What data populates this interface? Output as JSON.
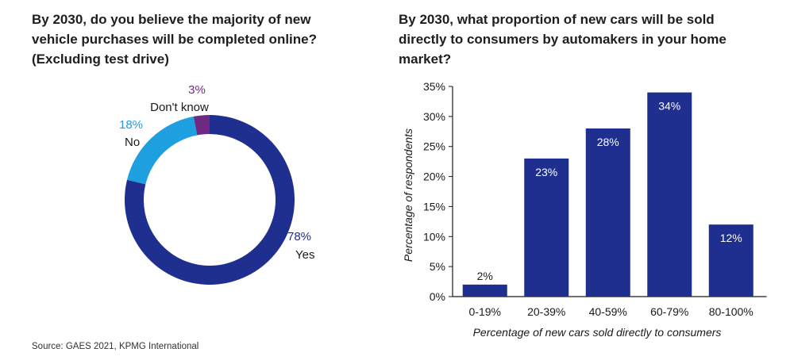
{
  "left_chart": {
    "title_lines": [
      "By 2030, do you believe the majority of new",
      "vehicle purchases will be completed online?",
      "(Excluding test drive)"
    ]
  },
  "right_chart": {
    "title_lines": [
      "By 2030, what proportion of new cars will be sold",
      "directly to consumers by automakers in your home",
      "market?"
    ]
  },
  "source_note": "Source: GAES 2021, KPMG International",
  "colors": {
    "navy": "#1F2F8F",
    "light_blue": "#1E9FE0",
    "purple": "#6E2A82",
    "text": "#1a1a1a"
  },
  "chart_data": [
    {
      "type": "pie",
      "variant": "donut",
      "slices": [
        {
          "label": "Yes",
          "value": 78,
          "value_label": "78%",
          "color": "#1F2F8F"
        },
        {
          "label": "No",
          "value": 18,
          "value_label": "18%",
          "color": "#1E9FE0"
        },
        {
          "label": "Don't know",
          "value": 3,
          "value_label": "3%",
          "color": "#6E2A82"
        }
      ]
    },
    {
      "type": "bar",
      "categories": [
        "0-19%",
        "20-39%",
        "40-59%",
        "60-79%",
        "80-100%"
      ],
      "values": [
        2,
        23,
        28,
        34,
        12
      ],
      "value_labels": [
        "2%",
        "23%",
        "28%",
        "34%",
        "12%"
      ],
      "xlabel": "Percentage of new cars sold directly to consumers",
      "ylabel": "Percentage of respondents",
      "ylim": [
        0,
        35
      ],
      "yticks": [
        0,
        5,
        10,
        15,
        20,
        25,
        30,
        35
      ],
      "ytick_labels": [
        "0%",
        "5%",
        "10%",
        "15%",
        "20%",
        "25%",
        "30%",
        "35%"
      ],
      "bar_color": "#1F2F8F",
      "grid": false
    }
  ]
}
